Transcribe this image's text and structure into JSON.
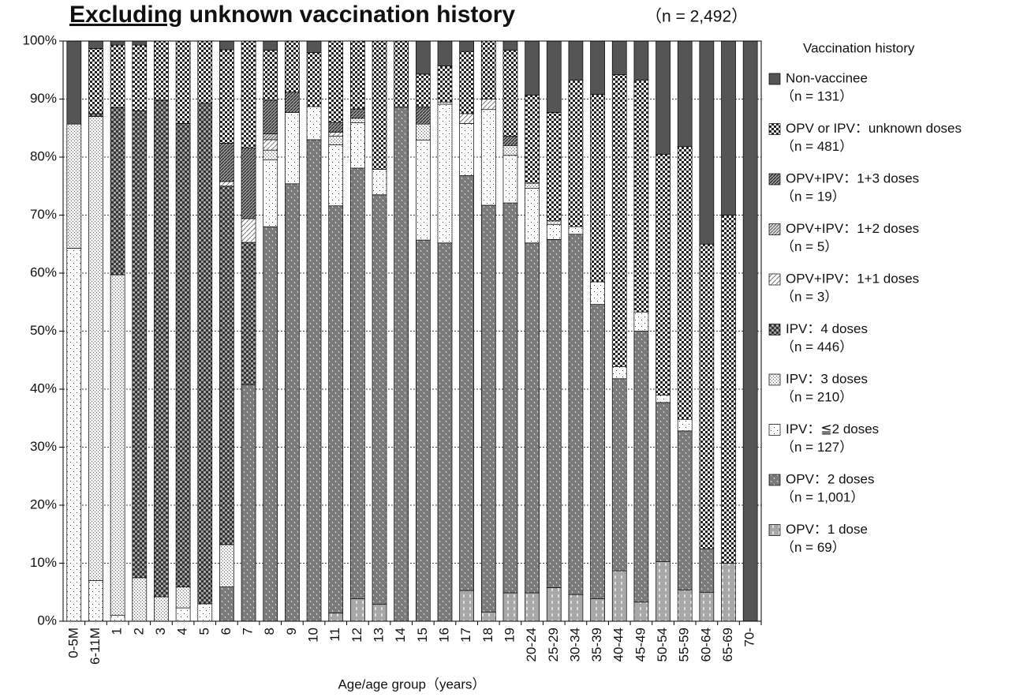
{
  "chart_data": {
    "type": "stacked_bar",
    "title_underlined": "Excluding",
    "title": "unknown vaccination history",
    "subtitle": "（n = 2,492）",
    "x_label": "Age/age group（years）",
    "legend_title": "Vaccination history",
    "grid": true,
    "ylim": [
      0,
      100
    ],
    "yticks": [
      {
        "value": 0,
        "label": "0%"
      },
      {
        "value": 10,
        "label": "10%"
      },
      {
        "value": 20,
        "label": "20%"
      },
      {
        "value": 30,
        "label": "30%"
      },
      {
        "value": 40,
        "label": "40%"
      },
      {
        "value": 50,
        "label": "50%"
      },
      {
        "value": 60,
        "label": "60%"
      },
      {
        "value": 70,
        "label": "70%"
      },
      {
        "value": 80,
        "label": "80%"
      },
      {
        "value": 90,
        "label": "90%"
      },
      {
        "value": 100,
        "label": "100%"
      }
    ],
    "categories": [
      "0-5M",
      "6-11M",
      "1",
      "2",
      "3",
      "4",
      "5",
      "6",
      "7",
      "8",
      "9",
      "10",
      "11",
      "12",
      "13",
      "14",
      "15",
      "16",
      "17",
      "18",
      "19",
      "20-24",
      "25-29",
      "30-34",
      "35-39",
      "40-44",
      "45-49",
      "50-54",
      "55-59",
      "60-64",
      "65-69",
      "70-"
    ],
    "series": [
      {
        "name": "OPV：1 dose",
        "count_label": "（n = 69）",
        "pattern": "opv1",
        "color": "#a8a8a8",
        "values": [
          0,
          0,
          0,
          0,
          0,
          0,
          0,
          0,
          0,
          0,
          0,
          0,
          1.4,
          3.9,
          2.9,
          0,
          0,
          0,
          5.3,
          1.6,
          4.9,
          4.9,
          5.8,
          4.6,
          3.9,
          8.7,
          3.3,
          10.3,
          5.4,
          5,
          10,
          0
        ]
      },
      {
        "name": "OPV：2 doses",
        "count_label": "（n = 1,001）",
        "pattern": "opv2",
        "color": "#7a7a7a",
        "values": [
          0,
          0,
          0,
          0,
          0,
          0,
          0,
          5.9,
          40.8,
          68,
          75.4,
          83,
          70.2,
          74.2,
          70.6,
          88.6,
          65.7,
          65.2,
          71.5,
          70.1,
          67.2,
          60.3,
          60,
          62.1,
          50.7,
          33.1,
          46.7,
          27.4,
          27.4,
          7.5,
          0,
          0
        ]
      },
      {
        "name": "IPV：≦2 doses",
        "count_label": "（n = 127）",
        "pattern": "ipv2",
        "color": "#ffffff",
        "values": [
          64.3,
          7,
          1,
          0,
          0,
          2.3,
          3,
          0,
          0,
          11.5,
          12.3,
          5.7,
          10.5,
          7.8,
          4.4,
          0,
          17.2,
          23.9,
          9,
          16.5,
          8.2,
          9.4,
          2.6,
          1.3,
          3.9,
          2.1,
          3.3,
          1.3,
          2,
          0,
          0,
          0
        ]
      },
      {
        "name": "IPV：3 doses",
        "count_label": "（n = 210）",
        "pattern": "ipv3",
        "color": "#eeeeee",
        "values": [
          21.4,
          80,
          58.7,
          7.5,
          4.2,
          3.6,
          0,
          7.3,
          0,
          1.7,
          0,
          0,
          1.5,
          0.8,
          0,
          0,
          2.8,
          0.4,
          0,
          0,
          1.7,
          0.9,
          0.6,
          0,
          0,
          0,
          0,
          0,
          0,
          0,
          0,
          0
        ]
      },
      {
        "name": "IPV：4 doses",
        "count_label": "（n = 446）",
        "pattern": "ipv4",
        "color": "#8a8a8a",
        "values": [
          0,
          0.5,
          28.8,
          80.5,
          85.6,
          79.9,
          86.3,
          61.8,
          24.5,
          0,
          0,
          0,
          0,
          0,
          0,
          0,
          0,
          0,
          0,
          0,
          0,
          0,
          0,
          0,
          0,
          0,
          0,
          0,
          0,
          0,
          0,
          0
        ]
      },
      {
        "name": "OPV+IPV：1+1 doses",
        "count_label": "（n = 3）",
        "pattern": "h11",
        "color": "#ffffff",
        "values": [
          0,
          0,
          0,
          0,
          0,
          0,
          0,
          0.8,
          4.1,
          1.8,
          0,
          0,
          0.7,
          0,
          0,
          0,
          0,
          0,
          1.7,
          1.8,
          0,
          0,
          0,
          0,
          0,
          0,
          0,
          0,
          0,
          0,
          0,
          0
        ]
      },
      {
        "name": "OPV+IPV：1+2 doses",
        "count_label": "（n = 5）",
        "pattern": "h12",
        "color": "#dddddd",
        "values": [
          0,
          0,
          0,
          0,
          0,
          0,
          0,
          0,
          0,
          1,
          0,
          0,
          0,
          0,
          0,
          0,
          0,
          0,
          0,
          0,
          0,
          0,
          0,
          0,
          0,
          0,
          0,
          0,
          0,
          0,
          0,
          0
        ]
      },
      {
        "name": "OPV+IPV：1+3 doses",
        "count_label": "（n = 19）",
        "pattern": "h13",
        "color": "#999999",
        "values": [
          0,
          0,
          0,
          0,
          0,
          0,
          0,
          6.6,
          12.2,
          5.8,
          3.5,
          0,
          1.7,
          1.6,
          0,
          0,
          2.9,
          0,
          0,
          0,
          1.6,
          0,
          0,
          0,
          0,
          0,
          0,
          0,
          0,
          0,
          0,
          0
        ]
      },
      {
        "name": "OPV or IPV：unknown doses",
        "count_label": "（n = 481）",
        "pattern": "unk",
        "color": "#ffffff",
        "values": [
          0,
          11.2,
          10.8,
          11.3,
          10.2,
          14.2,
          10.7,
          16.1,
          18.4,
          8.6,
          8.8,
          9.3,
          14,
          11.7,
          22.1,
          11.4,
          5.7,
          6.2,
          10.7,
          10,
          14.8,
          15.2,
          18.7,
          25.3,
          32.3,
          50.3,
          40,
          41.5,
          47,
          52.5,
          60,
          0
        ]
      },
      {
        "name": "Non-vaccinee",
        "count_label": "（n = 131）",
        "pattern": "solid",
        "color": "#555555",
        "values": [
          14.3,
          1.3,
          0.7,
          0.7,
          0,
          0,
          0,
          1.5,
          0,
          1.6,
          0,
          2,
          0,
          0,
          0,
          0,
          5.7,
          4.3,
          1.8,
          0,
          1.6,
          9.3,
          12.3,
          6.7,
          9.2,
          5.8,
          6.7,
          19.5,
          18.2,
          35,
          30,
          100
        ]
      }
    ]
  }
}
